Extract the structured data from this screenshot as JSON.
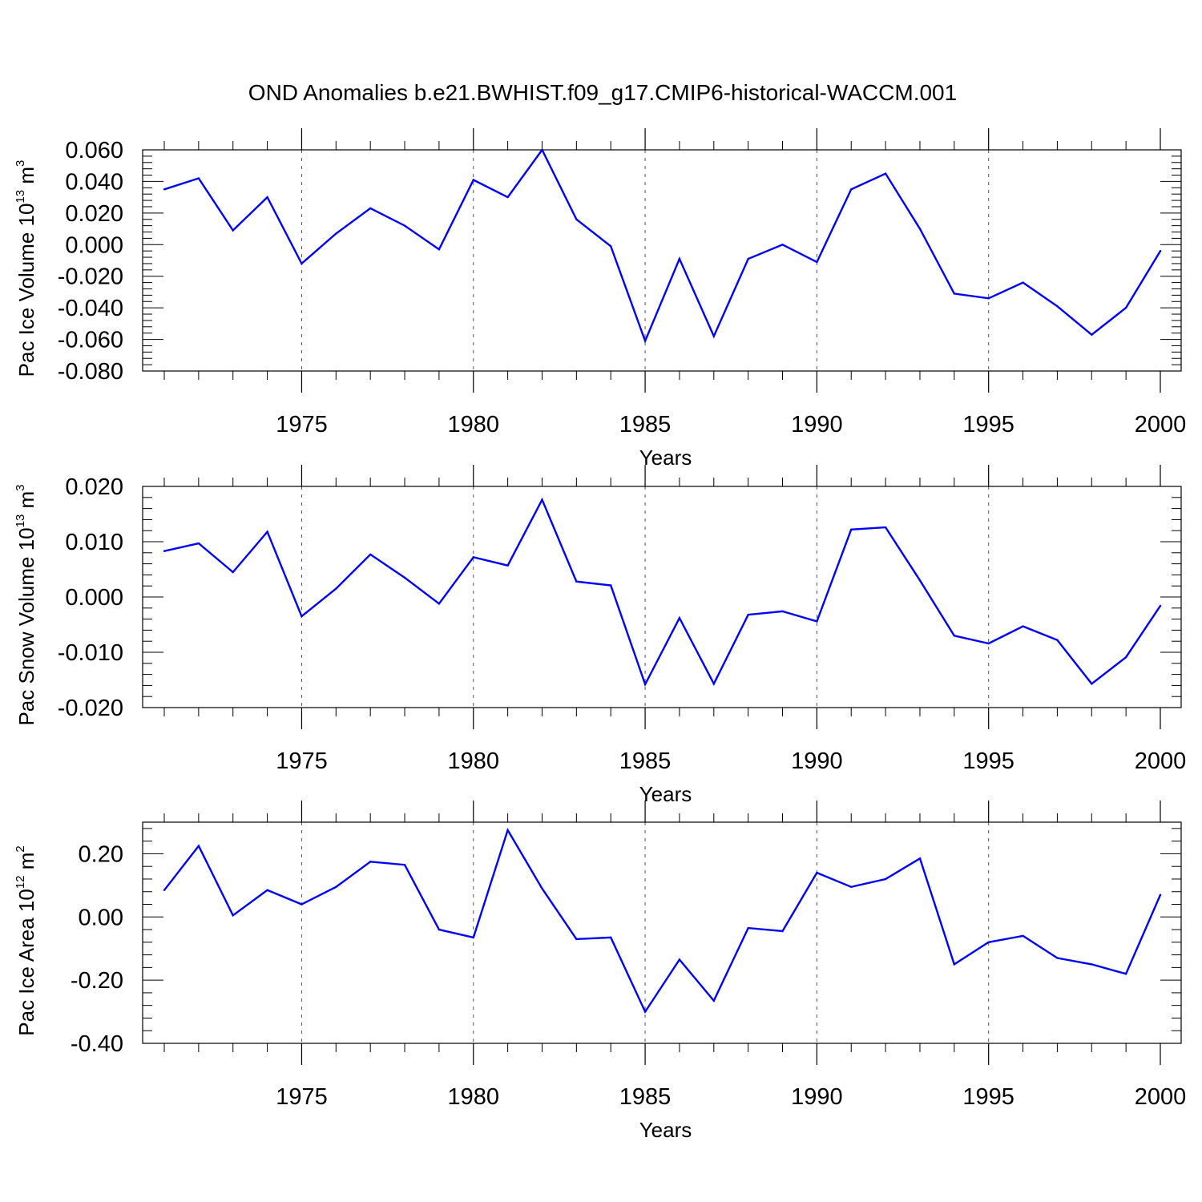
{
  "title": "OND Anomalies b.e21.BWHIST.f09_g17.CMIP6-historical-WACCM.001",
  "chart_data": [
    {
      "type": "line",
      "ylabel_prefix": "Pac Ice Volume 10",
      "ylabel_exp": "13",
      "ylabel_unit": " m",
      "ylabel_unit_exp": "3",
      "xlabel": "Years",
      "xlim": [
        1971,
        2000
      ],
      "ylim": [
        -0.08,
        0.06
      ],
      "yticks": [
        -0.08,
        -0.06,
        -0.04,
        -0.02,
        0.0,
        0.02,
        0.04,
        0.06
      ],
      "ytick_labels": [
        "-0.080",
        "-0.060",
        "-0.040",
        "-0.020",
        "0.000",
        "0.020",
        "0.040",
        "0.060"
      ],
      "xticks": [
        1975,
        1980,
        1985,
        1990,
        1995,
        2000
      ],
      "xtick_labels": [
        "1975",
        "1980",
        "1985",
        "1990",
        "1995",
        "2000"
      ],
      "color": "#0000ff",
      "x": [
        1971,
        1972,
        1973,
        1974,
        1975,
        1976,
        1977,
        1978,
        1979,
        1980,
        1981,
        1982,
        1983,
        1984,
        1985,
        1986,
        1987,
        1988,
        1989,
        1990,
        1991,
        1992,
        1993,
        1994,
        1995,
        1996,
        1997,
        1998,
        1999,
        2000
      ],
      "values": [
        0.035,
        0.042,
        0.009,
        0.03,
        -0.012,
        0.007,
        0.023,
        0.012,
        -0.003,
        0.041,
        0.03,
        0.06,
        0.016,
        -0.001,
        -0.061,
        -0.009,
        -0.058,
        -0.009,
        0.0,
        -0.011,
        0.035,
        0.045,
        0.01,
        -0.031,
        -0.034,
        -0.024,
        -0.039,
        -0.057,
        -0.04,
        -0.004
      ]
    },
    {
      "type": "line",
      "ylabel_prefix": "Pac Snow Volume 10",
      "ylabel_exp": "13",
      "ylabel_unit": " m",
      "ylabel_unit_exp": "3",
      "xlabel": "Years",
      "xlim": [
        1971,
        2000
      ],
      "ylim": [
        -0.02,
        0.02
      ],
      "yticks": [
        -0.02,
        -0.01,
        0.0,
        0.01,
        0.02
      ],
      "ytick_labels": [
        "-0.020",
        "-0.010",
        "0.000",
        "0.010",
        "0.020"
      ],
      "xticks": [
        1975,
        1980,
        1985,
        1990,
        1995,
        2000
      ],
      "xtick_labels": [
        "1975",
        "1980",
        "1985",
        "1990",
        "1995",
        "2000"
      ],
      "color": "#0000ff",
      "x": [
        1971,
        1972,
        1973,
        1974,
        1975,
        1976,
        1977,
        1978,
        1979,
        1980,
        1981,
        1982,
        1983,
        1984,
        1985,
        1986,
        1987,
        1988,
        1989,
        1990,
        1991,
        1992,
        1993,
        1994,
        1995,
        1996,
        1997,
        1998,
        1999,
        2000
      ],
      "values": [
        0.0083,
        0.0097,
        0.0045,
        0.0118,
        -0.0035,
        0.0015,
        0.0077,
        0.0035,
        -0.0012,
        0.0072,
        0.0057,
        0.0176,
        0.0028,
        0.0021,
        -0.0158,
        -0.0038,
        -0.0157,
        -0.0032,
        -0.0026,
        -0.0044,
        0.0122,
        0.0126,
        0.003,
        -0.007,
        -0.0084,
        -0.0053,
        -0.0078,
        -0.0157,
        -0.0109,
        -0.0016
      ]
    },
    {
      "type": "line",
      "ylabel_prefix": "Pac Ice Area 10",
      "ylabel_exp": "12",
      "ylabel_unit": " m",
      "ylabel_unit_exp": "2",
      "xlabel": "Years",
      "xlim": [
        1971,
        2000
      ],
      "ylim": [
        -0.4,
        0.3
      ],
      "yticks": [
        -0.4,
        -0.2,
        0.0,
        0.2
      ],
      "ytick_labels": [
        "-0.40",
        "-0.20",
        "0.00",
        "0.20"
      ],
      "xticks": [
        1975,
        1980,
        1985,
        1990,
        1995,
        2000
      ],
      "xtick_labels": [
        "1975",
        "1980",
        "1985",
        "1990",
        "1995",
        "2000"
      ],
      "color": "#0000ff",
      "x": [
        1971,
        1972,
        1973,
        1974,
        1975,
        1976,
        1977,
        1978,
        1979,
        1980,
        1981,
        1982,
        1983,
        1984,
        1985,
        1986,
        1987,
        1988,
        1989,
        1990,
        1991,
        1992,
        1993,
        1994,
        1995,
        1996,
        1997,
        1998,
        1999,
        2000
      ],
      "values": [
        0.085,
        0.225,
        0.005,
        0.085,
        0.04,
        0.095,
        0.175,
        0.165,
        -0.04,
        -0.065,
        0.275,
        0.09,
        -0.07,
        -0.065,
        -0.3,
        -0.135,
        -0.265,
        -0.035,
        -0.045,
        0.14,
        0.095,
        0.12,
        0.185,
        -0.15,
        -0.08,
        -0.06,
        -0.13,
        -0.15,
        -0.18,
        0.07
      ]
    }
  ]
}
